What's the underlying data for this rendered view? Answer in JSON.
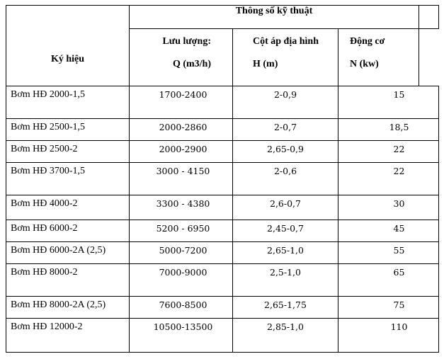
{
  "header": {
    "group_title": "Thông số kỹ thuật",
    "col_symbol": "Ký hiệu",
    "col_flow_line1": "Lưu lượng:",
    "col_flow_line2": "Q (m3/h)",
    "col_head_line1": "Cột áp địa hình",
    "col_head_line2": "H (m)",
    "col_motor_line1": "Động cơ",
    "col_motor_line2": "N (kw)"
  },
  "rows": [
    {
      "name": "Bơm HĐ 2000-1,5",
      "flow": "1700-2400",
      "head": "2-0,9",
      "motor": "15"
    },
    {
      "name": "Bơm HĐ 2500-1,5",
      "flow": "2000-2860",
      "head": "2-0,7",
      "motor": "18,5"
    },
    {
      "name": "Bơm HĐ 2500-2",
      "flow": "2000-2900",
      "head": "2,65-0,9",
      "motor": "22"
    },
    {
      "name": "Bơm HĐ 3700-1,5",
      "flow": "3000 - 4150",
      "head": "2-0,6",
      "motor": "22"
    },
    {
      "name": "Bơm HĐ 4000-2",
      "flow": "3300 - 4380",
      "head": "2,6-0,7",
      "motor": "30"
    },
    {
      "name": "Bơm HĐ 6000-2",
      "flow": "5200 - 6950",
      "head": "2,45-0,7",
      "motor": "45"
    },
    {
      "name": "Bơm HĐ 6000-2A (2,5)",
      "flow": "5000-7200",
      "head": "2,65-1,0",
      "motor": "55"
    },
    {
      "name": "Bơm HĐ 8000-2",
      "flow": "7000-9000",
      "head": "2,5-1,0",
      "motor": "65"
    },
    {
      "name": "Bơm HĐ 8000-2A (2,5)",
      "flow": "7600-8500",
      "head": "2,65-1,75",
      "motor": "75"
    },
    {
      "name": "Bơm HĐ 12000-2",
      "flow": "10500-13500",
      "head": "2,85-1,0",
      "motor": "110"
    }
  ]
}
